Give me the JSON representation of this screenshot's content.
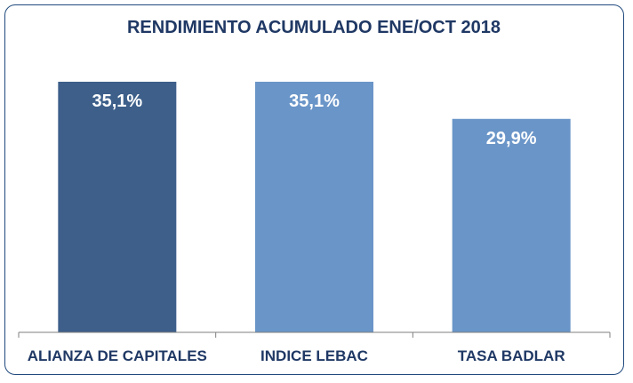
{
  "chart_data": {
    "type": "bar",
    "title": "RENDIMIENTO ACUMULADO ENE/OCT 2018",
    "categories": [
      "ALIANZA DE CAPITALES",
      "INDICE LEBAC",
      "TASA BADLAR"
    ],
    "values": [
      35.1,
      35.1,
      29.9
    ],
    "value_labels": [
      "35,1%",
      "35,1%",
      "29,9%"
    ],
    "ylim": [
      0,
      40
    ],
    "grid": false,
    "legend": "none",
    "xlabel": "",
    "ylabel": ""
  },
  "colors": {
    "bars": [
      "#3d5f8a",
      "#6a95c8",
      "#6a95c8"
    ],
    "axis": "#7f7f7f",
    "title": "#1f3864",
    "border": "#1f497d"
  }
}
